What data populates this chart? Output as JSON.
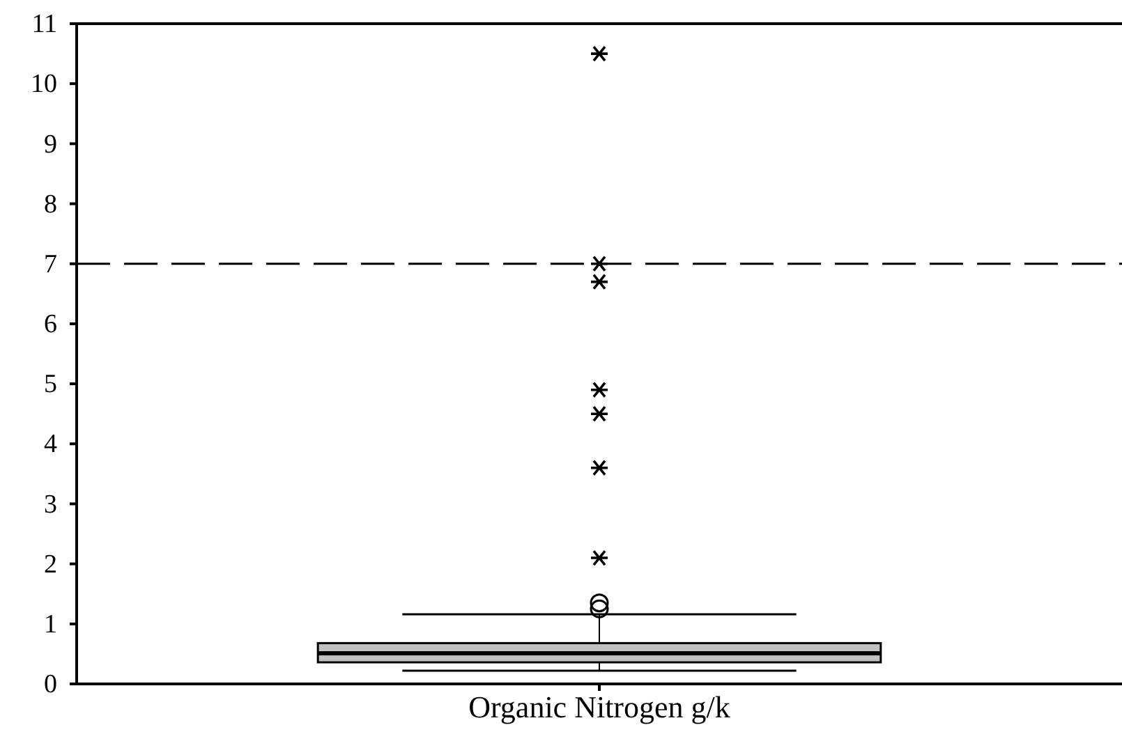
{
  "chart_data": {
    "type": "box",
    "categories": [
      "Organic Nitrogen g/k"
    ],
    "boxes": [
      {
        "low": 0.22,
        "q1": 0.36,
        "median": 0.51,
        "q3": 0.68,
        "high": 1.16,
        "outliers": [
          1.25,
          1.35,
          2.1,
          3.6,
          4.5,
          4.9,
          6.7,
          7.0,
          10.5
        ]
      }
    ],
    "color": "#c0c0c0",
    "ylim": [
      0,
      11
    ],
    "yticks": [
      0,
      1,
      2,
      3,
      4,
      5,
      6,
      7,
      8,
      9,
      10,
      11
    ],
    "ref_lines": [
      {
        "axis": "y",
        "value": 7,
        "line_style": "dashed"
      }
    ],
    "grid": false
  }
}
